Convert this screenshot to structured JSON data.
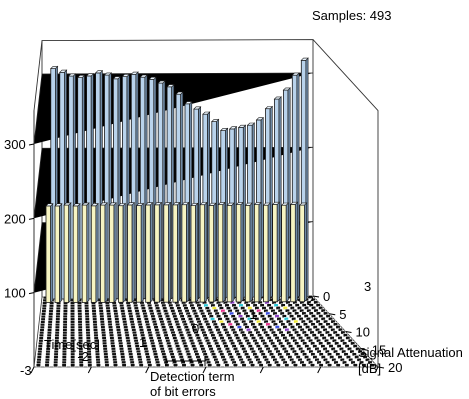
{
  "chart_data": {
    "type": "bar3d",
    "samples_label": "Samples: 493",
    "z_ticks": [
      "100",
      "200",
      "300"
    ],
    "z_tick_values": [
      100,
      200,
      300
    ],
    "z_range": [
      0,
      345
    ],
    "x_label": "Time[sec]",
    "x_ticks": [
      "-3",
      "-2",
      "-1",
      "0",
      "1",
      "2",
      "3"
    ],
    "x_range": [
      -3,
      3
    ],
    "y_label_line1": "Signal Attenuation",
    "y_label_line2": "[dB]",
    "y_ticks": [
      "0",
      "5",
      "10",
      "15",
      "20"
    ],
    "y_range": [
      0,
      20
    ],
    "annotation_line1": "Detection term",
    "annotation_line2": "of bit errors",
    "colors": {
      "tall_bar": "#b9d3ec",
      "mid_bar": "#f6f4c2",
      "floor_bar": "#111111",
      "error_cells": [
        "#e8368f",
        "#2ec7d6",
        "#3a4ee0",
        "#f0e83c",
        "#8a3fc4"
      ]
    },
    "back_row": {
      "y": 0,
      "tall_counts": [
        310,
        305,
        300,
        298,
        300,
        304,
        301,
        296,
        299,
        302,
        298,
        295,
        290,
        285,
        275,
        262,
        255,
        248,
        238,
        226,
        228,
        230,
        233,
        240,
        255,
        268,
        280,
        300,
        320
      ],
      "mid_counts": [
        130,
        130,
        131,
        130,
        131,
        130,
        131,
        131,
        130,
        131,
        130,
        131,
        131,
        131,
        131,
        131,
        130,
        131,
        130,
        131,
        130,
        131,
        130,
        131,
        130,
        131,
        130,
        131,
        130
      ]
    }
  }
}
